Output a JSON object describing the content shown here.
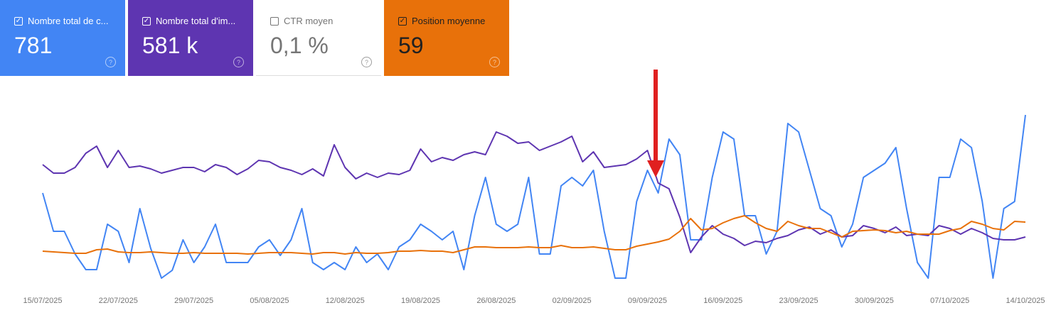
{
  "cards": [
    {
      "label": "Nombre total de c...",
      "value": "781",
      "checked": true,
      "color": "#4285f4",
      "help": "?"
    },
    {
      "label": "Nombre total d'im...",
      "value": "581 k",
      "checked": true,
      "color": "#5e35b1",
      "help": "?"
    },
    {
      "label": "CTR moyen",
      "value": "0,1 %",
      "checked": false,
      "color": "#ffffff",
      "help": "?"
    },
    {
      "label": "Position moyenne",
      "value": "59",
      "checked": true,
      "color": "#e8710a",
      "help": "?"
    }
  ],
  "chart_data": {
    "type": "line",
    "note": "relative values (no y-axis shown), higher = higher on chart",
    "x_start": "15/07/2025",
    "x_end": "14/10/2025",
    "xticks": [
      "15/07/2025",
      "22/07/2025",
      "29/07/2025",
      "05/08/2025",
      "12/08/2025",
      "19/08/2025",
      "26/08/2025",
      "02/09/2025",
      "09/09/2025",
      "16/09/2025",
      "23/09/2025",
      "30/09/2025",
      "07/10/2025",
      "14/10/2025"
    ],
    "ylim": [
      0,
      280
    ],
    "series": [
      {
        "name": "Nombre total de clics",
        "color": "#4285f4",
        "values": [
          148,
          94,
          94,
          62,
          40,
          40,
          104,
          94,
          50,
          126,
          70,
          28,
          39,
          82,
          50,
          72,
          104,
          50,
          50,
          50,
          72,
          82,
          60,
          82,
          126,
          50,
          40,
          50,
          40,
          72,
          50,
          62,
          40,
          72,
          82,
          104,
          94,
          82,
          94,
          40,
          116,
          170,
          104,
          94,
          104,
          170,
          62,
          62,
          158,
          170,
          158,
          180,
          94,
          28,
          28,
          136,
          180,
          148,
          224,
          202,
          82,
          82,
          170,
          234,
          224,
          116,
          116,
          62,
          94,
          246,
          234,
          180,
          126,
          116,
          72,
          104,
          170,
          180,
          190,
          212,
          126,
          50,
          28,
          170,
          170,
          224,
          212,
          136,
          28,
          126,
          136,
          258
        ]
      },
      {
        "name": "Nombre total d'impressions",
        "color": "#5e35b1",
        "values": [
          188,
          176,
          176,
          184,
          204,
          214,
          184,
          208,
          184,
          186,
          182,
          176,
          180,
          184,
          184,
          178,
          188,
          184,
          174,
          182,
          194,
          192,
          184,
          180,
          174,
          182,
          172,
          216,
          184,
          168,
          176,
          170,
          176,
          174,
          180,
          210,
          192,
          198,
          194,
          202,
          206,
          202,
          234,
          228,
          218,
          220,
          208,
          214,
          220,
          228,
          192,
          206,
          184,
          186,
          188,
          196,
          208,
          162,
          154,
          114,
          64,
          86,
          102,
          90,
          84,
          74,
          80,
          78,
          84,
          88,
          96,
          100,
          90,
          96,
          86,
          88,
          102,
          98,
          92,
          100,
          88,
          90,
          88,
          102,
          98,
          90,
          98,
          92,
          84,
          82,
          82,
          86
        ]
      },
      {
        "name": "Position moyenne",
        "color": "#e8710a",
        "values": [
          66,
          65,
          64,
          63,
          63,
          68,
          69,
          65,
          64,
          64,
          65,
          64,
          63,
          63,
          64,
          63,
          63,
          63,
          63,
          62,
          63,
          64,
          64,
          64,
          63,
          62,
          64,
          64,
          62,
          64,
          63,
          63,
          64,
          66,
          66,
          67,
          66,
          66,
          64,
          68,
          72,
          72,
          71,
          71,
          71,
          72,
          71,
          71,
          74,
          71,
          71,
          72,
          70,
          68,
          68,
          73,
          76,
          79,
          83,
          94,
          112,
          96,
          98,
          106,
          112,
          116,
          106,
          98,
          94,
          108,
          102,
          98,
          98,
          92,
          86,
          94,
          95,
          96,
          95,
          92,
          94,
          90,
          90,
          90,
          95,
          98,
          108,
          104,
          98,
          96,
          108,
          107
        ]
      }
    ]
  }
}
